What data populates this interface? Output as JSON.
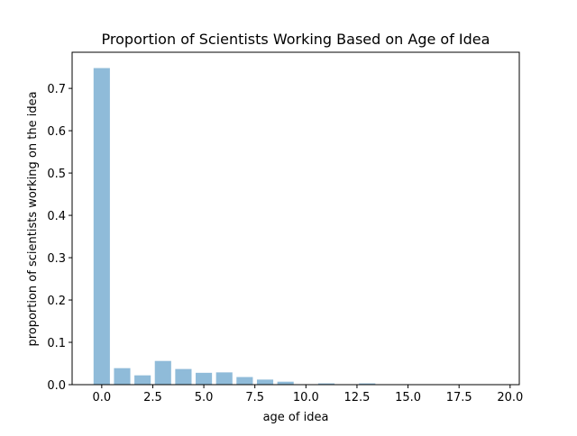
{
  "chart_data": {
    "type": "bar",
    "title": "Proportion of Scientists Working Based on Age of Idea",
    "xlabel": "age of idea",
    "ylabel": "proportion of scientists working on the idea",
    "x": [
      0,
      1,
      2,
      3,
      4,
      5,
      6,
      7,
      8,
      9,
      10,
      11,
      12,
      13,
      14,
      15,
      16,
      17,
      18,
      19
    ],
    "values": [
      0.748,
      0.039,
      0.022,
      0.056,
      0.037,
      0.028,
      0.029,
      0.018,
      0.012,
      0.007,
      0.001,
      0.003,
      0.001,
      0.003,
      0,
      0,
      0,
      0,
      0,
      0
    ],
    "xlim": [
      -1.45,
      20.45
    ],
    "ylim": [
      0,
      0.7854
    ],
    "xticks": [
      0,
      2.5,
      5,
      7.5,
      10,
      12.5,
      15,
      17.5,
      20
    ],
    "xtick_labels": [
      "0.0",
      "2.5",
      "5.0",
      "7.5",
      "10.0",
      "12.5",
      "15.0",
      "17.5",
      "20.0"
    ],
    "yticks": [
      0,
      0.1,
      0.2,
      0.3,
      0.4,
      0.5,
      0.6,
      0.7
    ],
    "ytick_labels": [
      "0.0",
      "0.1",
      "0.2",
      "0.3",
      "0.4",
      "0.5",
      "0.6",
      "0.7"
    ],
    "bar_width": 0.8,
    "grid": false,
    "bar_color": "#1f77b4",
    "bar_opacity": 0.5
  }
}
